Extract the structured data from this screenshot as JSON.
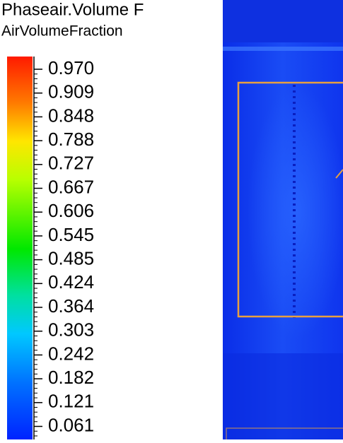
{
  "legend": {
    "title": "Phaseair.Volume F",
    "subtitle": "AirVolumeFraction",
    "ticks": [
      "0.970",
      "0.909",
      "0.848",
      "0.788",
      "0.727",
      "0.667",
      "0.606",
      "0.545",
      "0.485",
      "0.424",
      "0.364",
      "0.303",
      "0.242",
      "0.182",
      "0.121",
      "0.061"
    ]
  }
}
